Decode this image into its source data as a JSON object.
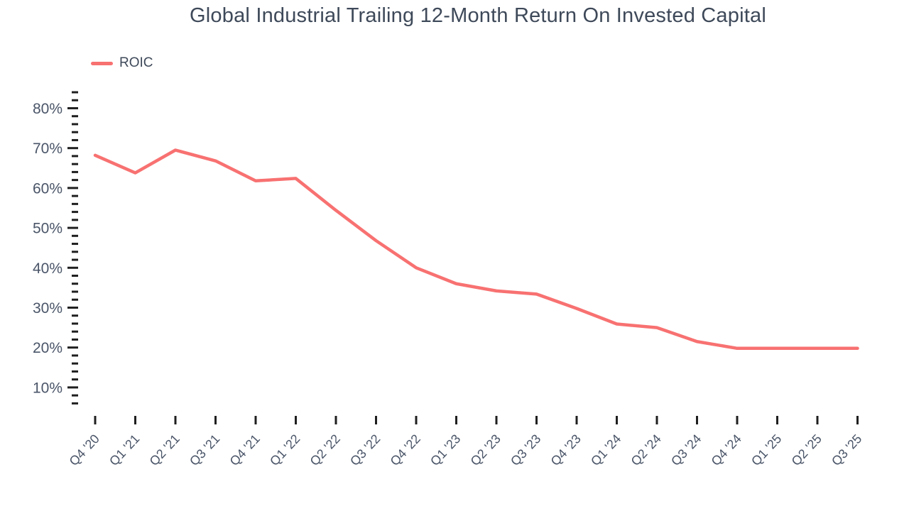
{
  "chart": {
    "title": "Global Industrial Trailing 12-Month Return On Invested Capital",
    "legend_label": "ROIC"
  },
  "colors": {
    "line": "#F87171",
    "title_text": "#3E4959",
    "axis_text": "#4A5568",
    "tick": "#1F1F1F",
    "background": "#FFFFFF"
  },
  "chart_data": {
    "type": "line",
    "title": "Global Industrial Trailing 12-Month Return On Invested Capital",
    "xlabel": "",
    "ylabel": "",
    "grid": false,
    "legend_position": "top-left",
    "categories": [
      "Q4 '20",
      "Q1 '21",
      "Q2 '21",
      "Q3 '21",
      "Q4 '21",
      "Q1 '22",
      "Q2 '22",
      "Q3 '22",
      "Q4 '22",
      "Q1 '23",
      "Q2 '23",
      "Q3 '23",
      "Q4 '23",
      "Q1 '24",
      "Q2 '24",
      "Q3 '24",
      "Q4 '24",
      "Q1 '25",
      "Q2 '25",
      "Q3 '25"
    ],
    "series": [
      {
        "name": "ROIC",
        "values": [
          68.2,
          63.8,
          69.5,
          66.8,
          61.8,
          62.4,
          54.4,
          46.8,
          40.0,
          36.0,
          34.2,
          33.4,
          29.8,
          25.9,
          25.0,
          21.5,
          19.8,
          19.8,
          19.8,
          19.8
        ]
      }
    ],
    "y_axis": {
      "min": 6,
      "max": 84,
      "minor_step": 2,
      "major_step": 10,
      "tick_labels": [
        "10%",
        "20%",
        "30%",
        "40%",
        "50%",
        "60%",
        "70%",
        "80%"
      ],
      "unit": "%"
    }
  }
}
